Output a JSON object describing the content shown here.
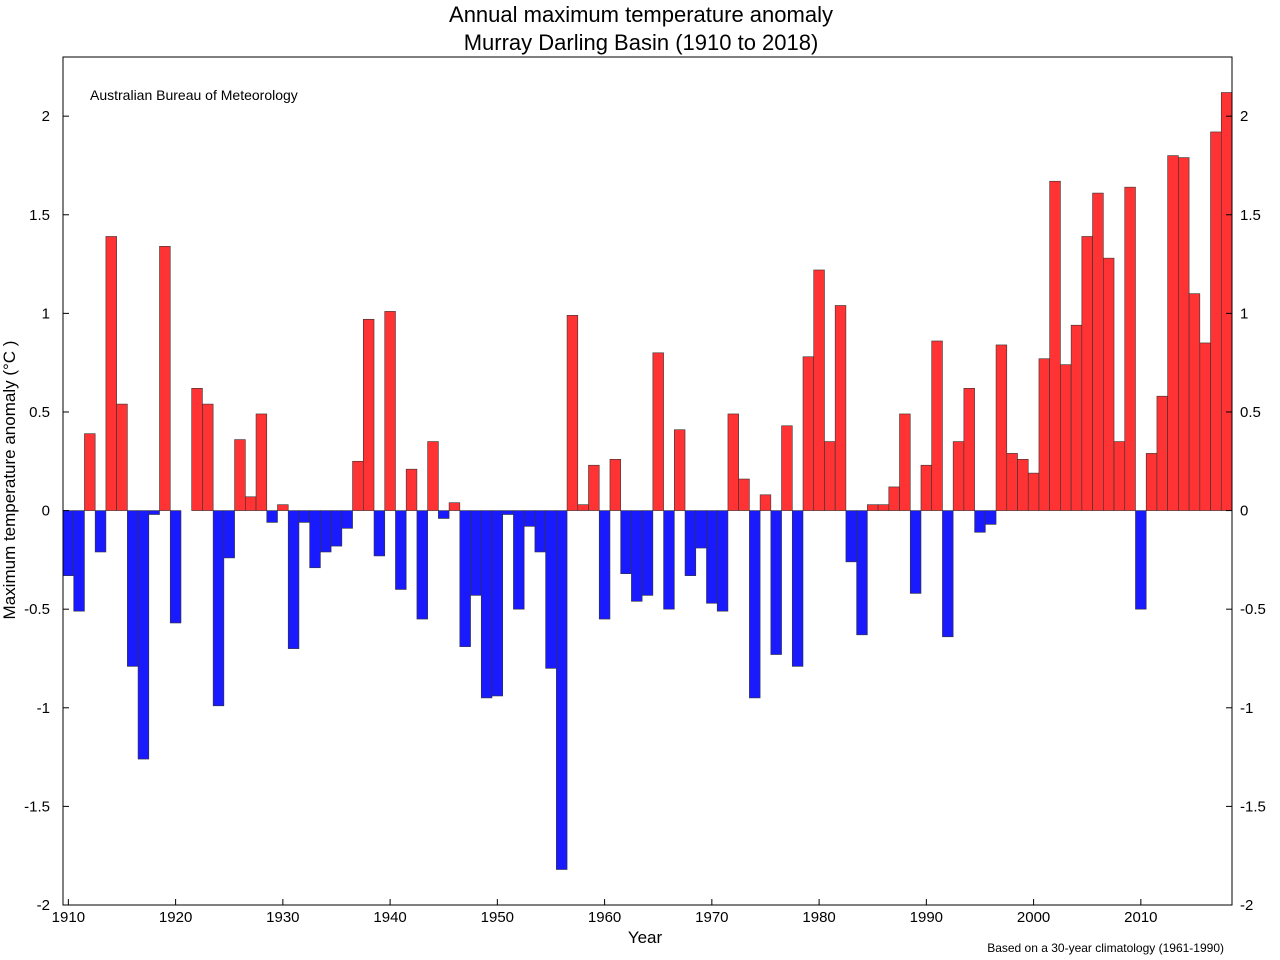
{
  "chart_data": {
    "type": "bar",
    "title": "Annual maximum temperature anomaly",
    "subtitle": "Murray Darling Basin (1910 to 2018)",
    "annotation": "Australian Bureau of Meteorology",
    "footnote": "Based on a 30-year climatology (1961-1990)",
    "xlabel": "Year",
    "ylabel": "Maximum temperature anomaly (°C )",
    "xlim": [
      1910,
      2018
    ],
    "ylim": [
      -2,
      2.3
    ],
    "x_ticks": [
      1910,
      1920,
      1930,
      1940,
      1950,
      1960,
      1970,
      1980,
      1990,
      2000,
      2010
    ],
    "y_ticks": [
      -2,
      -1.5,
      -1,
      -0.5,
      0,
      0.5,
      1,
      1.5,
      2
    ],
    "y_tick_labels": [
      "-2",
      "-1.5",
      "-1",
      "-0.5",
      "0",
      "0.5",
      "1",
      "1.5",
      "2"
    ],
    "colors": {
      "positive": "#ff3333",
      "negative": "#1a1aff",
      "bar_edge": "#333333"
    },
    "grid": false,
    "years": [
      1910,
      1911,
      1912,
      1913,
      1914,
      1915,
      1916,
      1917,
      1918,
      1919,
      1920,
      1921,
      1922,
      1923,
      1924,
      1925,
      1926,
      1927,
      1928,
      1929,
      1930,
      1931,
      1932,
      1933,
      1934,
      1935,
      1936,
      1937,
      1938,
      1939,
      1940,
      1941,
      1942,
      1943,
      1944,
      1945,
      1946,
      1947,
      1948,
      1949,
      1950,
      1951,
      1952,
      1953,
      1954,
      1955,
      1956,
      1957,
      1958,
      1959,
      1960,
      1961,
      1962,
      1963,
      1964,
      1965,
      1966,
      1967,
      1968,
      1969,
      1970,
      1971,
      1972,
      1973,
      1974,
      1975,
      1976,
      1977,
      1978,
      1979,
      1980,
      1981,
      1982,
      1983,
      1984,
      1985,
      1986,
      1987,
      1988,
      1989,
      1990,
      1991,
      1992,
      1993,
      1994,
      1995,
      1996,
      1997,
      1998,
      1999,
      2000,
      2001,
      2002,
      2003,
      2004,
      2005,
      2006,
      2007,
      2008,
      2009,
      2010,
      2011,
      2012,
      2013,
      2014,
      2015,
      2016,
      2017,
      2018
    ],
    "values": [
      -0.33,
      -0.51,
      0.39,
      -0.21,
      1.39,
      0.54,
      -0.79,
      -1.26,
      -0.02,
      1.34,
      -0.57,
      0,
      0.62,
      0.54,
      -0.99,
      -0.24,
      0.36,
      0.07,
      0.49,
      -0.06,
      0.03,
      -0.7,
      -0.06,
      -0.29,
      -0.21,
      -0.18,
      -0.09,
      0.25,
      0.97,
      -0.23,
      1.01,
      -0.4,
      0.21,
      -0.55,
      0.35,
      -0.04,
      0.04,
      -0.69,
      -0.43,
      -0.95,
      -0.94,
      -0.02,
      -0.5,
      -0.08,
      -0.21,
      -0.8,
      -1.82,
      0.99,
      0.03,
      0.23,
      -0.55,
      0.26,
      -0.32,
      -0.46,
      -0.43,
      0.8,
      -0.5,
      0.41,
      -0.33,
      -0.19,
      -0.47,
      -0.51,
      0.49,
      0.16,
      -0.95,
      0.08,
      -0.73,
      0.43,
      -0.79,
      0.78,
      1.22,
      0.35,
      1.04,
      -0.26,
      -0.63,
      0.03,
      0.03,
      0.12,
      0.49,
      -0.42,
      0.23,
      0.86,
      -0.64,
      0.35,
      0.62,
      -0.11,
      -0.07,
      0.84,
      0.29,
      0.26,
      0.19,
      0.77,
      1.67,
      0.74,
      0.94,
      1.39,
      1.61,
      1.28,
      0.35,
      1.64,
      -0.5,
      0.29,
      0.58,
      1.8,
      1.79,
      1.1,
      0.85,
      1.92,
      2.12
    ]
  }
}
